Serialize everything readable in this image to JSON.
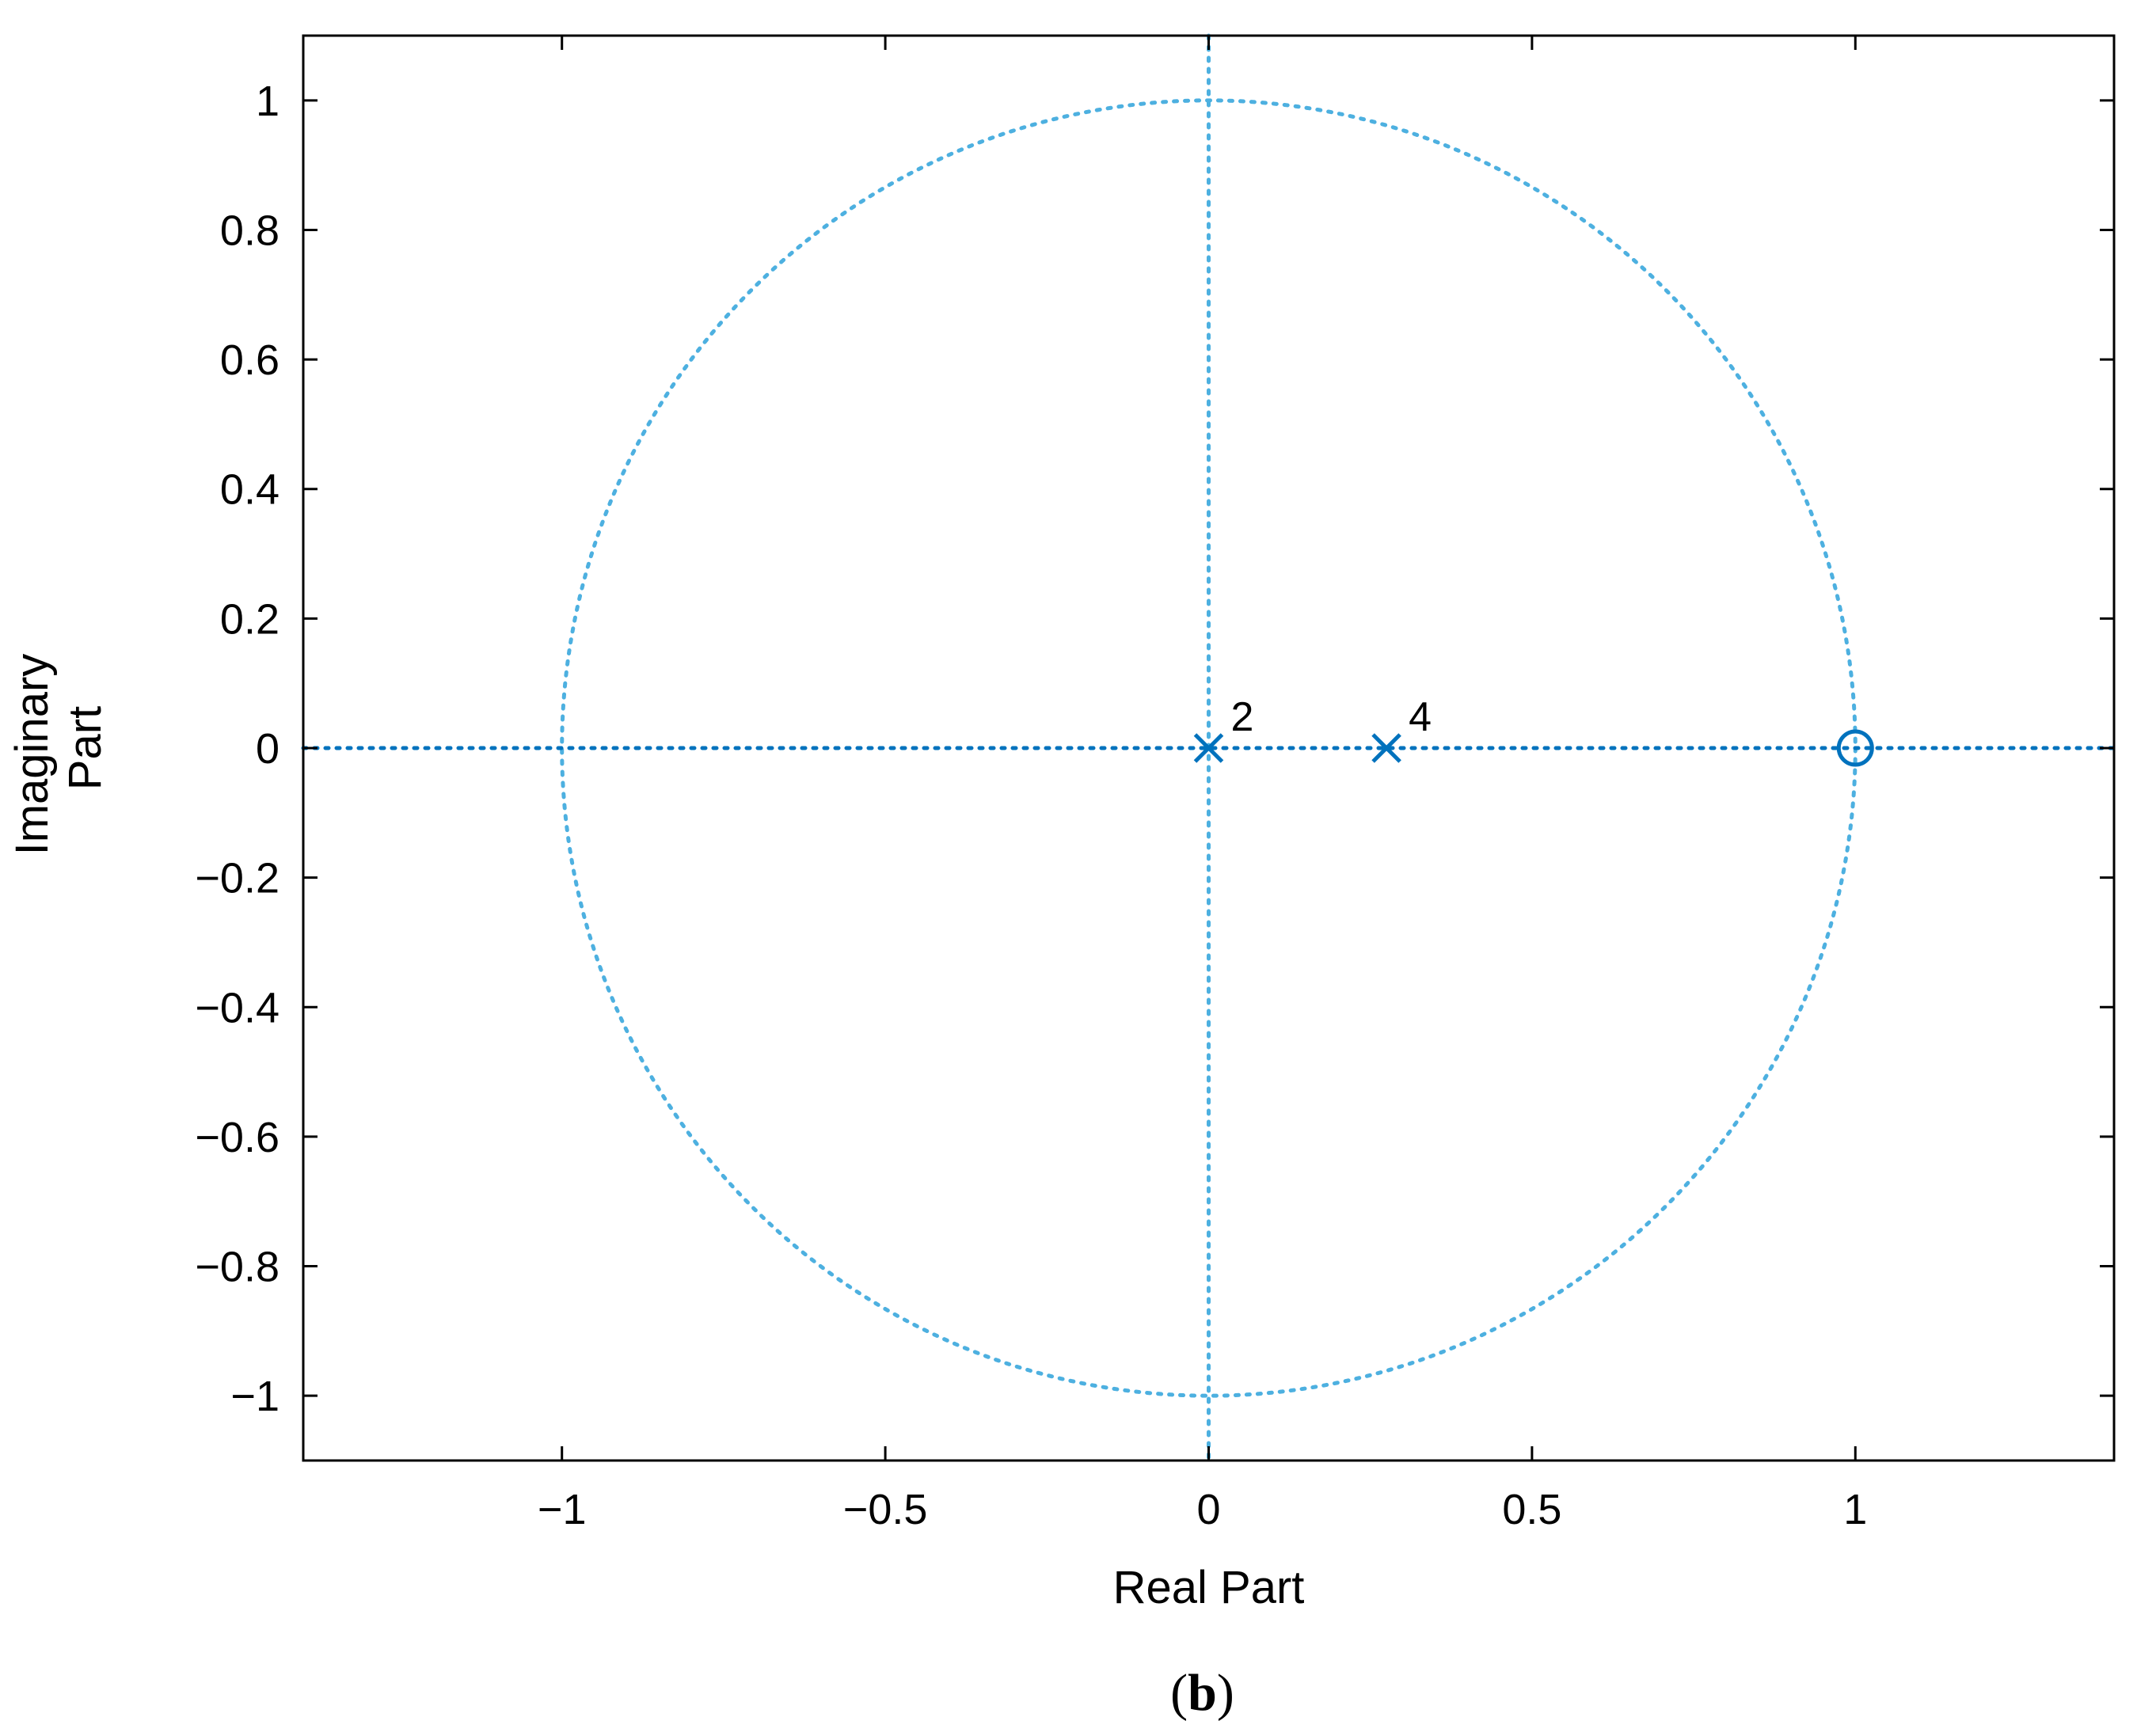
{
  "chart_data": {
    "type": "scatter",
    "xlabel": "Real Part",
    "ylabel_lines": [
      "Imaginary",
      "Part"
    ],
    "xlim": [
      -1.4,
      1.4
    ],
    "ylim": [
      -1.1,
      1.1
    ],
    "x_ticks": [
      -1,
      -0.5,
      0,
      0.5,
      1
    ],
    "x_tick_labels": [
      "−1",
      "−0.5",
      "0",
      "0.5",
      "1"
    ],
    "y_ticks": [
      1,
      0.8,
      0.6,
      0.4,
      0.2,
      0,
      -0.2,
      -0.4,
      -0.6,
      -0.8,
      -1
    ],
    "y_tick_labels": [
      "1",
      "0.8",
      "0.6",
      "0.4",
      "0.2",
      "0",
      "−0.2",
      "−0.4",
      "−0.6",
      "−0.8",
      "−1"
    ],
    "unit_circle": true,
    "grid": false,
    "poles": [
      {
        "x": 0,
        "y": 0,
        "multiplicity": "2"
      },
      {
        "x": 0.275,
        "y": 0,
        "multiplicity": "4"
      }
    ],
    "zeros": [
      {
        "x": 1,
        "y": 0
      }
    ],
    "colors": {
      "marker": "#0072BD",
      "reference": "#4DB0E0",
      "axes": "#000000"
    }
  },
  "panel_label": {
    "open": "(",
    "letter": "b",
    "close": ")"
  }
}
